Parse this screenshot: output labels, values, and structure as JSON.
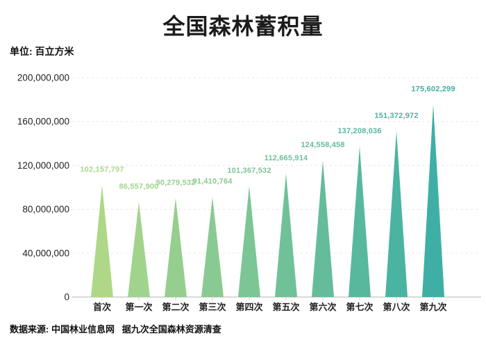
{
  "page": {
    "title": "全国森林蓄积量",
    "unit_label": "单位: 百立方米",
    "source_note": "数据来源: 中国林业信息网   据九次全国森林资源清查"
  },
  "chart_data": {
    "type": "bar",
    "bar_shape": "triangle-peak",
    "title": "全国森林蓄积量",
    "unit": "百立方米",
    "xlabel": "",
    "ylabel": "",
    "categories": [
      "首次",
      "第一次",
      "第二次",
      "第三次",
      "第四次",
      "第五次",
      "第六次",
      "第七次",
      "第八次",
      "第九次"
    ],
    "values": [
      102157797,
      86557900,
      90279532,
      91410764,
      101367532,
      112665914,
      124558458,
      137208036,
      151372972,
      175602299
    ],
    "data_labels": [
      "102,157,797",
      "86,557,900",
      "90,279,532",
      "91,410,764",
      "101,367,532",
      "112,665,914",
      "124,558,458",
      "137,208,036",
      "151,372,972",
      "175,602,299"
    ],
    "bar_colors": [
      "#aed788",
      "#a2d38c",
      "#95ce8e",
      "#89ca92",
      "#7cc595",
      "#70c198",
      "#64bc9b",
      "#57b89e",
      "#4bb3a2",
      "#3fafa5"
    ],
    "ylim": [
      0,
      200000000
    ],
    "y_ticks": [
      0,
      40000000,
      80000000,
      120000000,
      160000000,
      200000000
    ],
    "y_tick_labels": [
      "0",
      "40,000,000",
      "80,000,000",
      "120,000,000",
      "160,000,000",
      "200,000,000"
    ],
    "grid": "horizontal-dashed",
    "legend": "none",
    "colors": {
      "axis_line": "#d9d9d9",
      "grid_line": "#e7e7e7",
      "tick_mark": "#cccccc",
      "y_tick_text": "#1f1f1f",
      "category_text": "#222222",
      "title_text": "#1b1b1b"
    }
  }
}
